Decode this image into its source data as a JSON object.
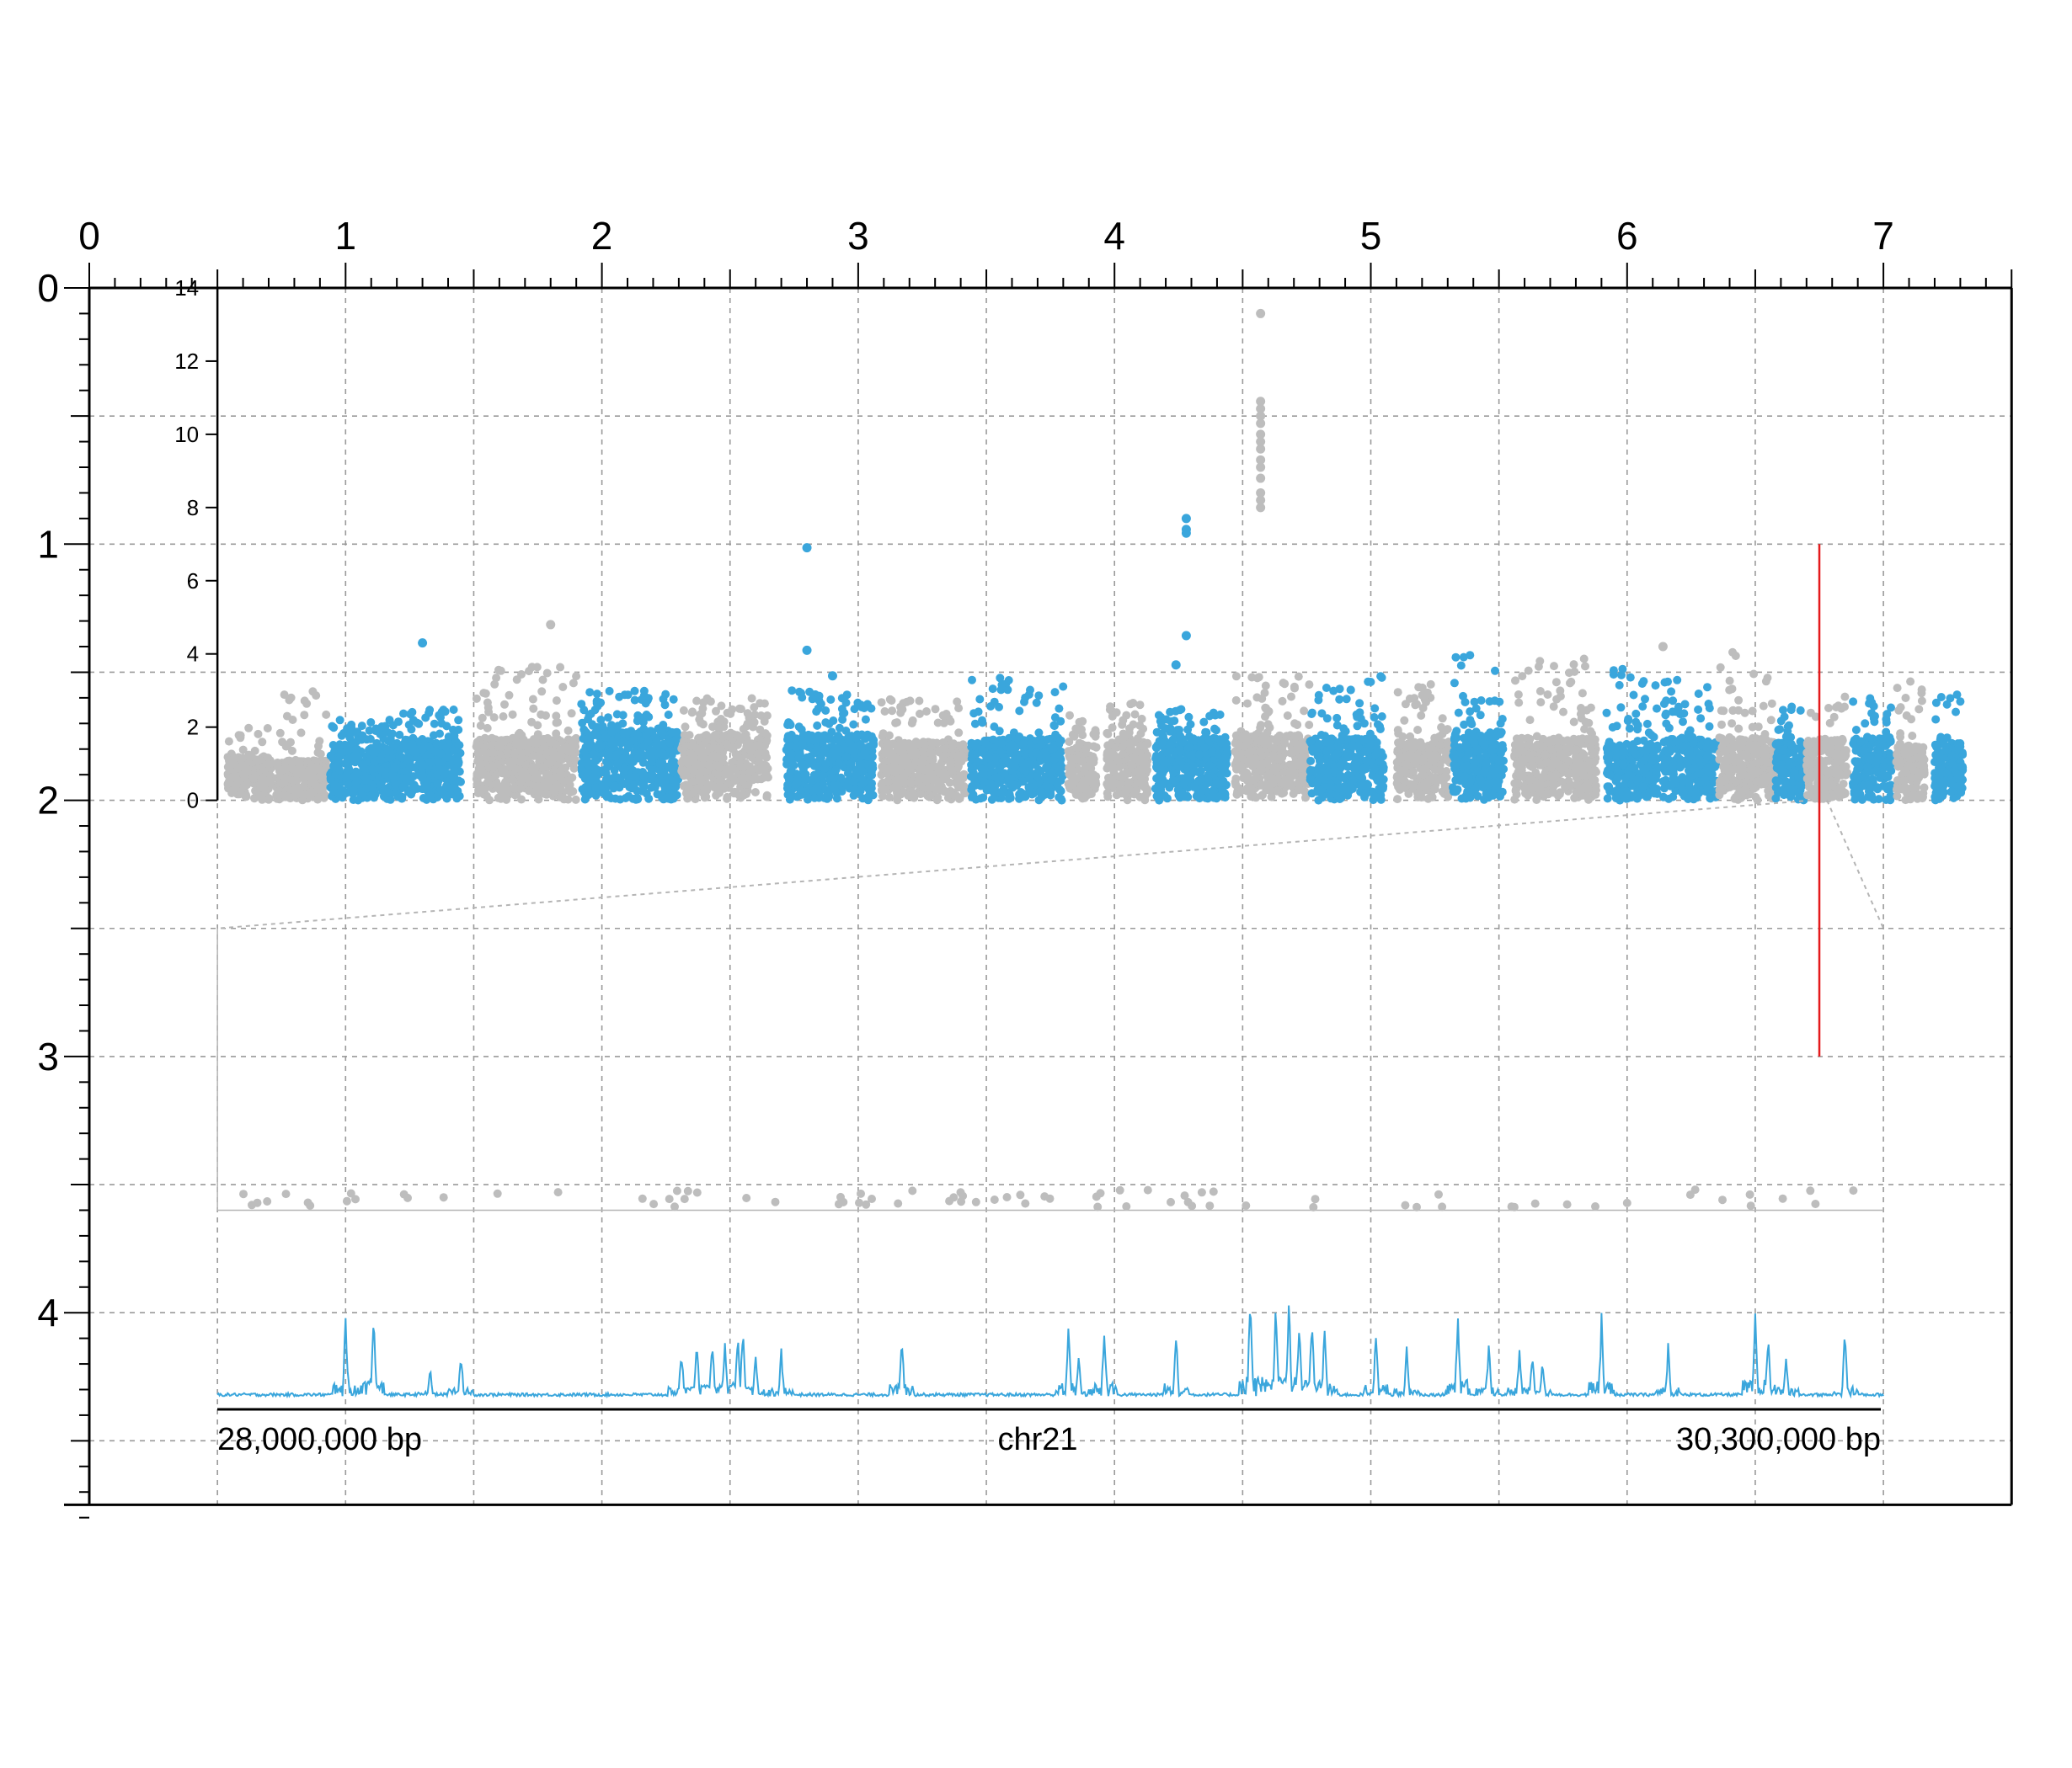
{
  "chart_data": {
    "type": "composite",
    "page_ruler": {
      "x_ticks": [
        "0",
        "1",
        "2",
        "3",
        "4",
        "5",
        "6",
        "7"
      ],
      "y_ticks": [
        "0",
        "1",
        "2",
        "3",
        "4"
      ],
      "x_range": [
        0,
        7.5
      ],
      "y_range": [
        0,
        4.75
      ],
      "grid": true
    },
    "manhattan": {
      "type": "scatter",
      "y_ticks": [
        "0",
        "2",
        "4",
        "6",
        "8",
        "10",
        "12",
        "14"
      ],
      "ylim": [
        0,
        14
      ],
      "colors": [
        "#bdbdbd",
        "#3aa6dc"
      ],
      "segments": [
        {
          "start": 0.04,
          "end": 0.21,
          "color": "#bdbdbd",
          "base": 1.2,
          "top": 2.0
        },
        {
          "start": 0.23,
          "end": 0.43,
          "color": "#bdbdbd",
          "base": 1.1,
          "top": 3.2
        },
        {
          "start": 0.44,
          "end": 0.72,
          "color": "#3aa6dc",
          "base": 1.4,
          "top": 2.2
        },
        {
          "start": 0.72,
          "end": 0.95,
          "color": "#3aa6dc",
          "base": 1.6,
          "top": 2.5
        },
        {
          "start": 1.01,
          "end": 1.4,
          "color": "#bdbdbd",
          "base": 1.7,
          "top": 3.8
        },
        {
          "start": 1.42,
          "end": 1.8,
          "color": "#3aa6dc",
          "base": 1.9,
          "top": 3.0
        },
        {
          "start": 1.81,
          "end": 2.15,
          "color": "#bdbdbd",
          "base": 1.8,
          "top": 2.8
        },
        {
          "start": 2.22,
          "end": 2.56,
          "color": "#3aa6dc",
          "base": 1.8,
          "top": 3.0
        },
        {
          "start": 2.59,
          "end": 2.92,
          "color": "#bdbdbd",
          "base": 1.6,
          "top": 2.9
        },
        {
          "start": 2.94,
          "end": 3.3,
          "color": "#3aa6dc",
          "base": 1.7,
          "top": 3.4
        },
        {
          "start": 3.32,
          "end": 3.43,
          "color": "#bdbdbd",
          "base": 1.5,
          "top": 2.4
        },
        {
          "start": 3.47,
          "end": 3.63,
          "color": "#bdbdbd",
          "base": 1.6,
          "top": 2.7
        },
        {
          "start": 3.66,
          "end": 3.94,
          "color": "#3aa6dc",
          "base": 1.7,
          "top": 2.5
        },
        {
          "start": 3.97,
          "end": 4.26,
          "color": "#bdbdbd",
          "base": 1.8,
          "top": 3.4
        },
        {
          "start": 4.26,
          "end": 4.55,
          "color": "#3aa6dc",
          "base": 1.7,
          "top": 3.4
        },
        {
          "start": 4.6,
          "end": 4.81,
          "color": "#bdbdbd",
          "base": 1.6,
          "top": 3.2
        },
        {
          "start": 4.82,
          "end": 5.02,
          "color": "#3aa6dc",
          "base": 1.9,
          "top": 4.0
        },
        {
          "start": 5.06,
          "end": 5.38,
          "color": "#bdbdbd",
          "base": 1.7,
          "top": 3.9
        },
        {
          "start": 5.42,
          "end": 5.62,
          "color": "#3aa6dc",
          "base": 1.5,
          "top": 3.6
        },
        {
          "start": 5.64,
          "end": 5.85,
          "color": "#3aa6dc",
          "base": 1.7,
          "top": 3.4
        },
        {
          "start": 5.86,
          "end": 6.08,
          "color": "#bdbdbd",
          "base": 1.7,
          "top": 4.2
        },
        {
          "start": 6.08,
          "end": 6.19,
          "color": "#3aa6dc",
          "base": 1.6,
          "top": 2.6
        },
        {
          "start": 6.2,
          "end": 6.36,
          "color": "#bdbdbd",
          "base": 1.7,
          "top": 2.9
        },
        {
          "start": 6.38,
          "end": 6.53,
          "color": "#3aa6dc",
          "base": 1.7,
          "top": 2.9
        },
        {
          "start": 6.55,
          "end": 6.66,
          "color": "#bdbdbd",
          "base": 1.5,
          "top": 3.4
        },
        {
          "start": 6.7,
          "end": 6.81,
          "color": "#3aa6dc",
          "base": 1.6,
          "top": 2.9
        }
      ],
      "outliers": [
        {
          "x": 2.3,
          "y": 6.9,
          "color": "#3aa6dc"
        },
        {
          "x": 2.3,
          "y": 4.1,
          "color": "#3aa6dc"
        },
        {
          "x": 2.4,
          "y": 3.4,
          "color": "#3aa6dc"
        },
        {
          "x": 0.8,
          "y": 4.3,
          "color": "#3aa6dc"
        },
        {
          "x": 1.3,
          "y": 4.8,
          "color": "#bdbdbd"
        },
        {
          "x": 3.78,
          "y": 7.7,
          "color": "#3aa6dc"
        },
        {
          "x": 3.78,
          "y": 7.4,
          "color": "#3aa6dc"
        },
        {
          "x": 3.78,
          "y": 7.3,
          "color": "#3aa6dc"
        },
        {
          "x": 3.78,
          "y": 4.5,
          "color": "#3aa6dc"
        },
        {
          "x": 3.74,
          "y": 3.7,
          "color": "#3aa6dc"
        },
        {
          "x": 4.07,
          "y": 13.3,
          "color": "#bdbdbd"
        },
        {
          "x": 4.07,
          "y": 10.9,
          "color": "#bdbdbd"
        },
        {
          "x": 4.07,
          "y": 10.7,
          "color": "#bdbdbd"
        },
        {
          "x": 4.07,
          "y": 10.5,
          "color": "#bdbdbd"
        },
        {
          "x": 4.07,
          "y": 10.3,
          "color": "#bdbdbd"
        },
        {
          "x": 4.07,
          "y": 10.0,
          "color": "#bdbdbd"
        },
        {
          "x": 4.07,
          "y": 9.8,
          "color": "#bdbdbd"
        },
        {
          "x": 4.07,
          "y": 9.6,
          "color": "#bdbdbd"
        },
        {
          "x": 4.07,
          "y": 9.3,
          "color": "#bdbdbd"
        },
        {
          "x": 4.07,
          "y": 9.1,
          "color": "#bdbdbd"
        },
        {
          "x": 4.07,
          "y": 8.8,
          "color": "#bdbdbd"
        },
        {
          "x": 4.07,
          "y": 8.4,
          "color": "#bdbdbd"
        },
        {
          "x": 4.07,
          "y": 8.2,
          "color": "#bdbdbd"
        },
        {
          "x": 4.07,
          "y": 8.0,
          "color": "#bdbdbd"
        },
        {
          "x": 5.64,
          "y": 4.2,
          "color": "#bdbdbd"
        }
      ]
    },
    "highlight": {
      "x": 6.75,
      "y_from": 1.0,
      "y_to": 3.0,
      "color": "#e41a1c"
    },
    "region": {
      "x_start": 6.72,
      "x_end": 6.78
    },
    "zoom_scatter": {
      "color": "#bdbdbd",
      "y_top": 3.5,
      "y_bottom": 3.6
    },
    "signal_track": {
      "type": "line",
      "color": "#3aa6dc",
      "peaks": [
        {
          "x": 1.0,
          "h": 0.34
        },
        {
          "x": 1.11,
          "h": 0.37
        },
        {
          "x": 1.33,
          "h": 0.12
        },
        {
          "x": 1.45,
          "h": 0.2
        },
        {
          "x": 2.31,
          "h": 0.22
        },
        {
          "x": 2.37,
          "h": 0.26
        },
        {
          "x": 2.43,
          "h": 0.26
        },
        {
          "x": 2.48,
          "h": 0.22
        },
        {
          "x": 2.53,
          "h": 0.27
        },
        {
          "x": 2.55,
          "h": 0.32
        },
        {
          "x": 2.6,
          "h": 0.2
        },
        {
          "x": 2.7,
          "h": 0.2
        },
        {
          "x": 3.17,
          "h": 0.29
        },
        {
          "x": 3.82,
          "h": 0.32
        },
        {
          "x": 3.86,
          "h": 0.18
        },
        {
          "x": 3.96,
          "h": 0.32
        },
        {
          "x": 4.24,
          "h": 0.31
        },
        {
          "x": 4.53,
          "h": 0.47
        },
        {
          "x": 4.63,
          "h": 0.4
        },
        {
          "x": 4.68,
          "h": 0.44
        },
        {
          "x": 4.72,
          "h": 0.34
        },
        {
          "x": 4.77,
          "h": 0.38
        },
        {
          "x": 4.82,
          "h": 0.3
        },
        {
          "x": 5.02,
          "h": 0.28
        },
        {
          "x": 5.14,
          "h": 0.2
        },
        {
          "x": 5.34,
          "h": 0.38
        },
        {
          "x": 5.46,
          "h": 0.23
        },
        {
          "x": 5.58,
          "h": 0.22
        },
        {
          "x": 5.63,
          "h": 0.2
        },
        {
          "x": 5.67,
          "h": 0.16
        },
        {
          "x": 5.9,
          "h": 0.34
        },
        {
          "x": 6.16,
          "h": 0.22
        },
        {
          "x": 6.5,
          "h": 0.38
        },
        {
          "x": 6.55,
          "h": 0.3
        },
        {
          "x": 6.62,
          "h": 0.18
        },
        {
          "x": 6.85,
          "h": 0.28
        }
      ]
    },
    "axis_labels": {
      "left": "28,000,000 bp",
      "center": "chr21",
      "right": "30,300,000 bp"
    }
  }
}
